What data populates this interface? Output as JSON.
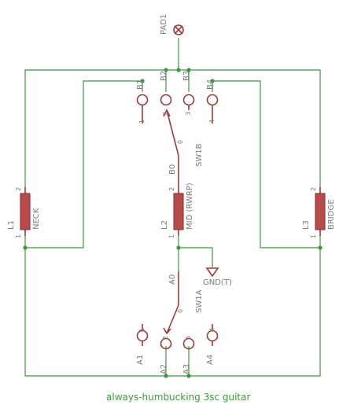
{
  "pad": {
    "name": "PAD1"
  },
  "switch_b": {
    "name": "SW1B",
    "pins": [
      "B1",
      "B2",
      "B3",
      "B4"
    ],
    "pin_numbers": [
      "1",
      "2",
      "3",
      "4"
    ],
    "common": "B0",
    "common_num": "0"
  },
  "switch_a": {
    "name": "SW1A",
    "pins": [
      "A1",
      "A2",
      "A3",
      "A4"
    ],
    "pin_numbers": [
      "1",
      "2",
      "3",
      "4"
    ],
    "common": "A0",
    "common_num": "0"
  },
  "coils": [
    {
      "ref": "L1",
      "name": "NECK",
      "pin_top": "2",
      "pin_bottom": "1"
    },
    {
      "ref": "L2",
      "name": "MID (RWRP)",
      "pin_top": "2",
      "pin_bottom": "1"
    },
    {
      "ref": "L3",
      "name": "BRIDGE",
      "pin_top": "2",
      "pin_bottom": "1"
    }
  ],
  "ground": {
    "label": "GND(T)"
  },
  "caption": "always-humbucking 3sc guitar",
  "colors": {
    "wire": "#3a9a3a",
    "part": "#a03a3a",
    "coil": "#b84a4a",
    "label": "#7a7a7a"
  }
}
